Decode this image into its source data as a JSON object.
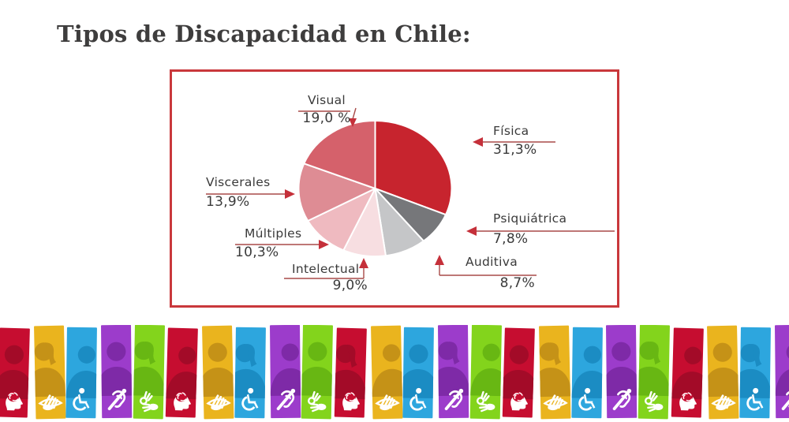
{
  "page": {
    "title": "Tipos de Discapacidad en Chile:"
  },
  "chart_data": {
    "type": "pie",
    "title": "Tipos de Discapacidad en Chile",
    "unit": "%",
    "decimal_separator": ",",
    "direction": "clockwise",
    "start_angle_deg": 0,
    "legend_position": "callout-labels",
    "slices": [
      {
        "label": "Física",
        "value": 31.3,
        "display": "31,3%",
        "color": "#c7242e"
      },
      {
        "label": "Psiquiátrica",
        "value": 7.8,
        "display": "7,8%",
        "color": "#76777a"
      },
      {
        "label": "Auditiva",
        "value": 8.7,
        "display": "8,7%",
        "color": "#c5c6c8"
      },
      {
        "label": "Intelectual",
        "value": 9.0,
        "display": "9,0%",
        "color": "#f7dee1"
      },
      {
        "label": "Múltiples",
        "value": 10.3,
        "display": "10,3%",
        "color": "#efbac0"
      },
      {
        "label": "Viscerales",
        "value": 13.9,
        "display": "13,9%",
        "color": "#de8c94"
      },
      {
        "label": "Visual",
        "value": 19.0,
        "display": "19,0 %",
        "color": "#d5616b"
      }
    ]
  },
  "frame": {
    "border_color": "#c9383c"
  },
  "leader": {
    "line_color": "#a84a48",
    "arrow_color": "#c5303a"
  },
  "banner": {
    "stripe_count": 24,
    "pattern": [
      {
        "color_name": "red",
        "bg": "#c60d30",
        "silhouette": "#a30b28",
        "icon": "brain-head-icon"
      },
      {
        "color_name": "gold",
        "bg": "#eab41e",
        "silhouette": "#c59217",
        "icon": "blind-icon"
      },
      {
        "color_name": "blue",
        "bg": "#2da6de",
        "silhouette": "#1b8cc3",
        "icon": "wheelchair-icon"
      },
      {
        "color_name": "purple",
        "bg": "#9c3ccb",
        "silhouette": "#7e2aa7",
        "icon": "deaf-icon"
      },
      {
        "color_name": "green",
        "bg": "#83d41c",
        "silhouette": "#68b713",
        "icon": "sign-language-icon"
      }
    ]
  }
}
